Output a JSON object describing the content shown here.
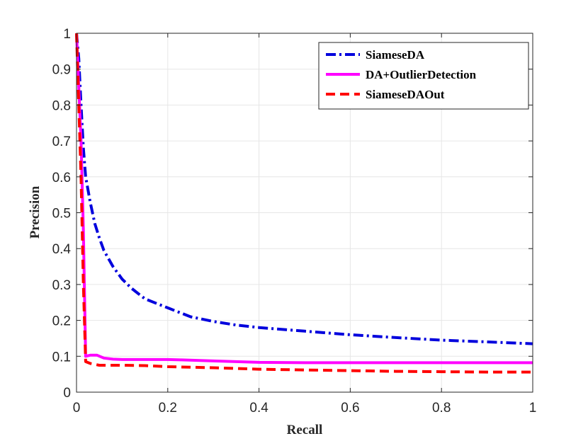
{
  "chart_data": {
    "type": "line",
    "xlabel": "Recall",
    "ylabel": "Precision",
    "xlim": [
      0,
      1
    ],
    "ylim": [
      0,
      1
    ],
    "xticks": [
      "0",
      "0.2",
      "0.4",
      "0.6",
      "0.8",
      "1"
    ],
    "yticks": [
      "0",
      "0.1",
      "0.2",
      "0.3",
      "0.4",
      "0.5",
      "0.6",
      "0.7",
      "0.8",
      "0.9",
      "1"
    ],
    "grid": true,
    "legend_position": "top-right",
    "series": [
      {
        "name": "SiameseDA",
        "color": "#0000dd",
        "dash": "dash-dot",
        "points": [
          [
            0.0,
            1.0
          ],
          [
            0.005,
            0.93
          ],
          [
            0.01,
            0.8
          ],
          [
            0.015,
            0.68
          ],
          [
            0.02,
            0.6
          ],
          [
            0.03,
            0.53
          ],
          [
            0.04,
            0.47
          ],
          [
            0.05,
            0.43
          ],
          [
            0.06,
            0.395
          ],
          [
            0.08,
            0.35
          ],
          [
            0.1,
            0.315
          ],
          [
            0.12,
            0.29
          ],
          [
            0.15,
            0.26
          ],
          [
            0.2,
            0.235
          ],
          [
            0.25,
            0.21
          ],
          [
            0.3,
            0.197
          ],
          [
            0.35,
            0.187
          ],
          [
            0.4,
            0.18
          ],
          [
            0.5,
            0.17
          ],
          [
            0.6,
            0.16
          ],
          [
            0.7,
            0.152
          ],
          [
            0.8,
            0.145
          ],
          [
            0.9,
            0.14
          ],
          [
            1.0,
            0.135
          ]
        ]
      },
      {
        "name": "DA+OutlierDetection",
        "color": "#ff00ff",
        "dash": "solid",
        "points": [
          [
            0.0,
            1.0
          ],
          [
            0.005,
            0.85
          ],
          [
            0.01,
            0.7
          ],
          [
            0.015,
            0.45
          ],
          [
            0.02,
            0.1
          ],
          [
            0.03,
            0.103
          ],
          [
            0.045,
            0.103
          ],
          [
            0.06,
            0.095
          ],
          [
            0.08,
            0.092
          ],
          [
            0.1,
            0.091
          ],
          [
            0.2,
            0.091
          ],
          [
            0.23,
            0.09
          ],
          [
            0.3,
            0.087
          ],
          [
            0.4,
            0.083
          ],
          [
            0.5,
            0.082
          ],
          [
            0.6,
            0.082
          ],
          [
            0.7,
            0.082
          ],
          [
            0.8,
            0.082
          ],
          [
            0.9,
            0.082
          ],
          [
            1.0,
            0.082
          ]
        ]
      },
      {
        "name": "SiameseDAOut",
        "color": "#ff0000",
        "dash": "dashed",
        "points": [
          [
            0.0,
            1.0
          ],
          [
            0.005,
            0.8
          ],
          [
            0.01,
            0.6
          ],
          [
            0.015,
            0.3
          ],
          [
            0.02,
            0.085
          ],
          [
            0.03,
            0.08
          ],
          [
            0.05,
            0.075
          ],
          [
            0.1,
            0.075
          ],
          [
            0.15,
            0.074
          ],
          [
            0.2,
            0.071
          ],
          [
            0.3,
            0.068
          ],
          [
            0.4,
            0.064
          ],
          [
            0.5,
            0.062
          ],
          [
            0.6,
            0.06
          ],
          [
            0.7,
            0.058
          ],
          [
            0.8,
            0.057
          ],
          [
            0.9,
            0.056
          ],
          [
            1.0,
            0.056
          ]
        ]
      }
    ]
  }
}
